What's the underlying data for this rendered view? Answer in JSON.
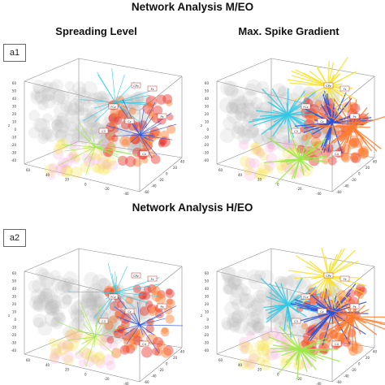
{
  "figure": {
    "top_title": "Network Analysis M/EO",
    "bottom_title": "Network Analysis H/EO",
    "left_column_title": "Spreading Level",
    "right_column_title": "Max. Spike Gradient",
    "row_tags": [
      "a1",
      "a2"
    ]
  },
  "axes": {
    "z_label": "z",
    "z_ticks": [
      "60",
      "50",
      "40",
      "30",
      "20",
      "10",
      "0",
      "-10",
      "-20",
      "-30",
      "-40"
    ],
    "x_ticks": [
      "60",
      "40",
      "20",
      "0",
      "-20",
      "-40"
    ],
    "y_ticks": [
      "-60",
      "-40",
      "-20",
      "0",
      "20",
      "40"
    ]
  },
  "node_labels": [
    "CPz",
    "Fz",
    "FCz",
    "Cz",
    "Pz",
    "C3",
    "C4",
    "P3",
    "P4",
    "T8"
  ],
  "colors": {
    "brain_gray": "#b8b8b8",
    "orange": "#ff7a2a",
    "red": "#e8342a",
    "cyan": "#2fc9e8",
    "blue": "#2a52d8",
    "green": "#9ee84a",
    "yellow": "#f4e12e",
    "pink": "#f2a9d6"
  }
}
